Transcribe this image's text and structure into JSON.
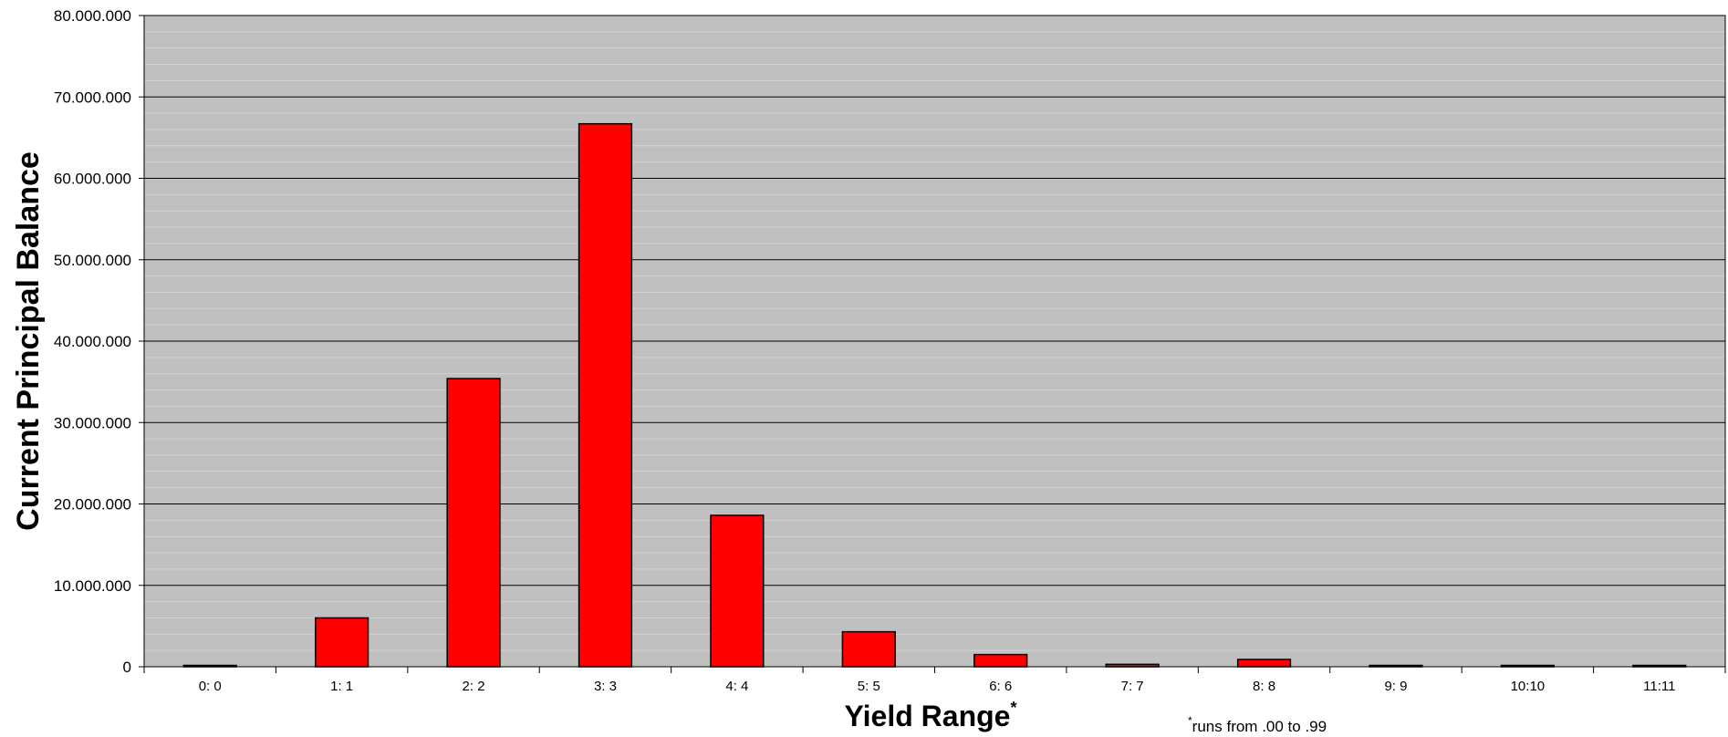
{
  "chart_data": {
    "type": "bar",
    "categories": [
      "0: 0",
      "1: 1",
      "2: 2",
      "3: 3",
      "4: 4",
      "5: 5",
      "6: 6",
      "7: 7",
      "8: 8",
      "9: 9",
      "10:10",
      "11:11"
    ],
    "values": [
      50000,
      6000000,
      35400000,
      66700000,
      18600000,
      4300000,
      1500000,
      300000,
      900000,
      150000,
      60000,
      40000
    ],
    "ylim": [
      0,
      80000000
    ],
    "yticks": [
      0,
      10000000,
      20000000,
      30000000,
      40000000,
      50000000,
      60000000,
      70000000,
      80000000
    ],
    "ytick_labels": [
      "0",
      "10.000.000",
      "20.000.000",
      "30.000.000",
      "40.000.000",
      "50.000.000",
      "60.000.000",
      "70.000.000",
      "80.000.000"
    ],
    "xlabel": "Yield Range",
    "xlabel_marker": "*",
    "ylabel": "Current Principal Balance",
    "footnote_marker": "*",
    "footnote": "runs from .00 to .99",
    "grid": true,
    "legend": "none",
    "colors": {
      "bar_fill": "#ff0000",
      "bar_stroke": "#000000",
      "plot_background": "#c0c0c0",
      "major_grid": "#000000",
      "minor_grid": "#d4d4d4"
    }
  }
}
